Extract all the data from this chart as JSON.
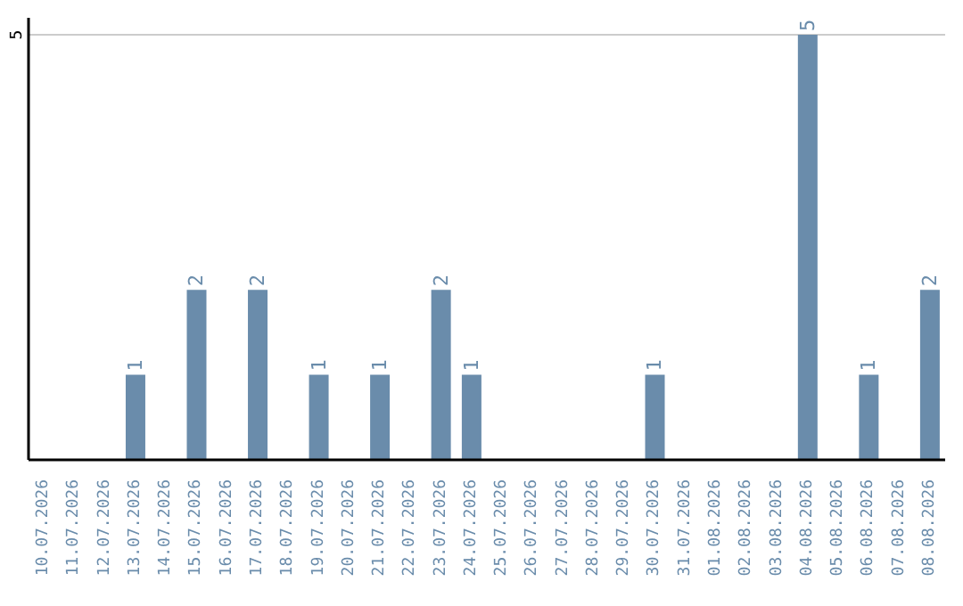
{
  "chart_data": {
    "type": "bar",
    "categories": [
      "10.07.2026",
      "11.07.2026",
      "12.07.2026",
      "13.07.2026",
      "14.07.2026",
      "15.07.2026",
      "16.07.2026",
      "17.07.2026",
      "18.07.2026",
      "19.07.2026",
      "20.07.2026",
      "21.07.2026",
      "22.07.2026",
      "23.07.2026",
      "24.07.2026",
      "25.07.2026",
      "26.07.2026",
      "27.07.2026",
      "28.07.2026",
      "29.07.2026",
      "30.07.2026",
      "31.07.2026",
      "01.08.2026",
      "02.08.2026",
      "03.08.2026",
      "04.08.2026",
      "05.08.2026",
      "06.08.2026",
      "07.08.2026",
      "08.08.2026"
    ],
    "values": [
      0,
      0,
      0,
      1,
      0,
      2,
      0,
      2,
      0,
      1,
      0,
      1,
      0,
      2,
      1,
      0,
      0,
      0,
      0,
      0,
      1,
      0,
      0,
      0,
      0,
      5,
      0,
      1,
      0,
      2
    ],
    "value_labels": [
      null,
      null,
      null,
      "1",
      null,
      "2",
      null,
      "2",
      null,
      "1",
      null,
      "1",
      null,
      "2",
      "1",
      null,
      null,
      null,
      null,
      null,
      "1",
      null,
      null,
      null,
      null,
      "5",
      null,
      "1",
      null,
      "2"
    ],
    "color": "#6a8cab",
    "ylim": [
      0,
      5.2
    ],
    "yticks": [
      5
    ],
    "grid": "y"
  }
}
